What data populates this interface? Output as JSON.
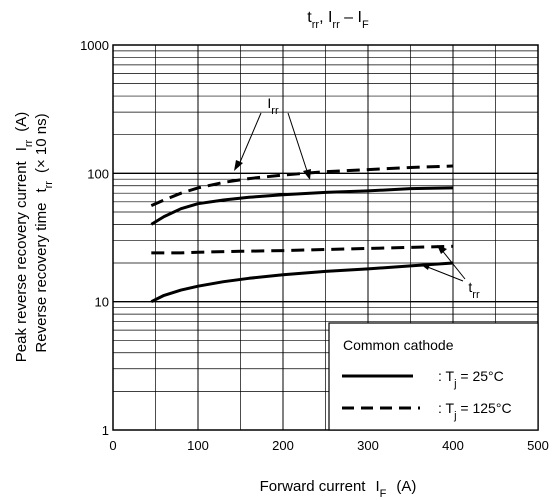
{
  "chart_data": {
    "type": "line",
    "title": {
      "main_a": "t",
      "sub_a": "rr",
      "main_b": ", I",
      "sub_b": "rr",
      "main_c": " – I",
      "sub_c": "F"
    },
    "xlabel": {
      "main": "Forward current",
      "main2": "I",
      "sub": "F",
      "unit": "(A)"
    },
    "ylabel": {
      "line1_main": "Peak reverse recovery current",
      "line1_sym": "I",
      "line1_sub": "rr",
      "line1_unit": "(A)",
      "line2_main": "Reverse recovery time",
      "line2_sym": "t",
      "line2_sub": "rr",
      "line2_unit": "(× 10 ns)"
    },
    "xlim": [
      0,
      500
    ],
    "ylim": [
      1,
      1000
    ],
    "y_scale": "log",
    "grid": true,
    "x_ticks": [
      0,
      100,
      200,
      300,
      400,
      500
    ],
    "x_tick_labels": [
      "0",
      "100",
      "200",
      "300",
      "400",
      "500"
    ],
    "y_ticks": [
      1,
      10,
      100,
      1000
    ],
    "y_tick_labels": [
      "1",
      "10",
      "100",
      "1000"
    ],
    "series": [
      {
        "kind": "Irr",
        "condition": "25",
        "style": "solid",
        "x": [
          45,
          60,
          80,
          100,
          130,
          160,
          200,
          250,
          300,
          350,
          400
        ],
        "y": [
          40,
          46,
          53,
          58,
          62,
          65,
          68,
          71,
          73,
          76,
          77
        ]
      },
      {
        "kind": "Irr",
        "condition": "125",
        "style": "dashed",
        "x": [
          45,
          60,
          80,
          100,
          130,
          160,
          200,
          250,
          300,
          350,
          400
        ],
        "y": [
          56,
          62,
          70,
          77,
          85,
          91,
          97,
          103,
          107,
          111,
          114
        ]
      },
      {
        "kind": "trr",
        "condition": "25",
        "style": "solid",
        "x": [
          45,
          60,
          80,
          100,
          130,
          160,
          200,
          250,
          300,
          350,
          400
        ],
        "y": [
          10,
          11.2,
          12.3,
          13.2,
          14.3,
          15.2,
          16.2,
          17.2,
          18,
          19,
          20
        ]
      },
      {
        "kind": "trr",
        "condition": "125",
        "style": "dashed",
        "x": [
          45,
          80,
          100,
          150,
          200,
          250,
          300,
          350,
          400
        ],
        "y": [
          24,
          24,
          24.3,
          24.7,
          25,
          25.5,
          26,
          26.5,
          27
        ]
      }
    ],
    "legend": {
      "placement": "bottom-right",
      "title": "Common cathode",
      "items": [
        {
          "style": "solid",
          "prefix": ": T",
          "sub": "j",
          "suffix": " = 25°C"
        },
        {
          "style": "dashed",
          "prefix": ": T",
          "sub": "j",
          "suffix": " = 125°C"
        }
      ]
    },
    "annotations": [
      {
        "main": "I",
        "sub": "rr",
        "target": "Irr"
      },
      {
        "main": "t",
        "sub": "rr",
        "target": "trr"
      }
    ]
  }
}
